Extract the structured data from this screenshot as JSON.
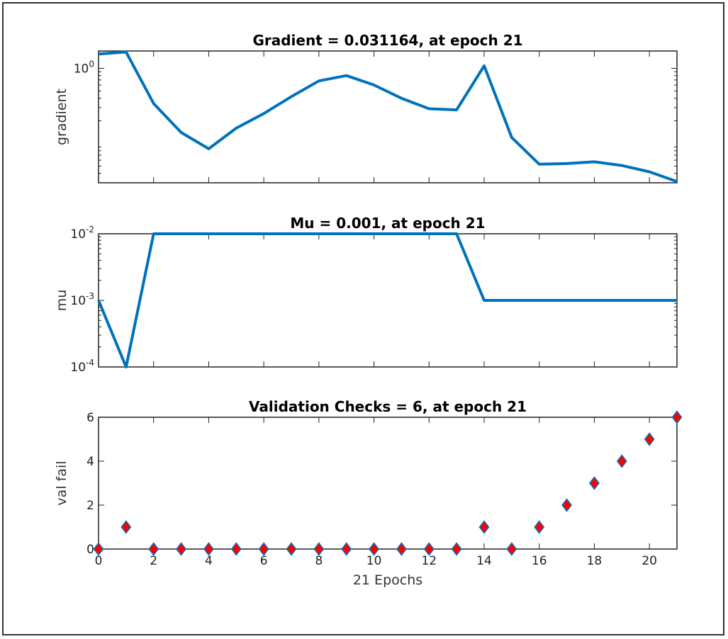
{
  "chart_data": [
    {
      "type": "line",
      "title": "Gradient = 0.031164, at epoch 21",
      "ylabel": "gradient",
      "xlabel": "",
      "yscale": "log",
      "xlim": [
        0,
        21
      ],
      "ylim": [
        0.03,
        1.7
      ],
      "x_ticks": [
        0,
        2,
        4,
        6,
        8,
        10,
        12,
        14,
        16,
        18,
        20
      ],
      "show_x_tick_labels": false,
      "y_ticks": [
        {
          "value": 1,
          "base": "10",
          "exp": "0"
        }
      ],
      "color": "#0072bd",
      "x": [
        0,
        1,
        2,
        3,
        4,
        5,
        6,
        7,
        8,
        9,
        10,
        11,
        12,
        13,
        14,
        15,
        16,
        17,
        18,
        19,
        20,
        21
      ],
      "values": [
        1.55,
        1.65,
        0.34,
        0.14,
        0.085,
        0.16,
        0.25,
        0.42,
        0.68,
        0.8,
        0.6,
        0.4,
        0.29,
        0.28,
        1.08,
        0.12,
        0.053,
        0.054,
        0.057,
        0.051,
        0.042,
        0.031164
      ]
    },
    {
      "type": "line",
      "title": "Mu = 0.001, at epoch 21",
      "ylabel": "mu",
      "xlabel": "",
      "yscale": "log",
      "xlim": [
        0,
        21
      ],
      "ylim": [
        0.0001,
        0.01
      ],
      "x_ticks": [
        0,
        2,
        4,
        6,
        8,
        10,
        12,
        14,
        16,
        18,
        20
      ],
      "show_x_tick_labels": false,
      "y_ticks": [
        {
          "value": 0.01,
          "base": "10",
          "exp": "-2"
        },
        {
          "value": 0.001,
          "base": "10",
          "exp": "-3"
        },
        {
          "value": 0.0001,
          "base": "10",
          "exp": "-4"
        }
      ],
      "color": "#0072bd",
      "x": [
        0,
        1,
        2,
        3,
        4,
        5,
        6,
        7,
        8,
        9,
        10,
        11,
        12,
        13,
        14,
        15,
        16,
        17,
        18,
        19,
        20,
        21
      ],
      "values": [
        0.001,
        0.0001,
        0.01,
        0.01,
        0.01,
        0.01,
        0.01,
        0.01,
        0.01,
        0.01,
        0.01,
        0.01,
        0.01,
        0.01,
        0.001,
        0.001,
        0.001,
        0.001,
        0.001,
        0.001,
        0.001,
        0.001
      ]
    },
    {
      "type": "scatter",
      "title": "Validation Checks = 6, at epoch 21",
      "ylabel": "val fail",
      "xlabel": "21 Epochs",
      "yscale": "linear",
      "xlim": [
        0,
        21
      ],
      "ylim": [
        0,
        6
      ],
      "x_ticks": [
        0,
        2,
        4,
        6,
        8,
        10,
        12,
        14,
        16,
        18,
        20
      ],
      "show_x_tick_labels": true,
      "y_ticks": [
        {
          "value": 0,
          "label": "0"
        },
        {
          "value": 2,
          "label": "2"
        },
        {
          "value": 4,
          "label": "4"
        },
        {
          "value": 6,
          "label": "6"
        }
      ],
      "marker": "diamond",
      "marker_fill": "#ff0000",
      "marker_edge": "#0072bd",
      "x": [
        0,
        1,
        2,
        3,
        4,
        5,
        6,
        7,
        8,
        9,
        10,
        11,
        12,
        13,
        14,
        15,
        16,
        17,
        18,
        19,
        20,
        21
      ],
      "values": [
        0,
        1,
        0,
        0,
        0,
        0,
        0,
        0,
        0,
        0,
        0,
        0,
        0,
        0,
        1,
        0,
        1,
        2,
        3,
        4,
        5,
        6
      ]
    }
  ]
}
